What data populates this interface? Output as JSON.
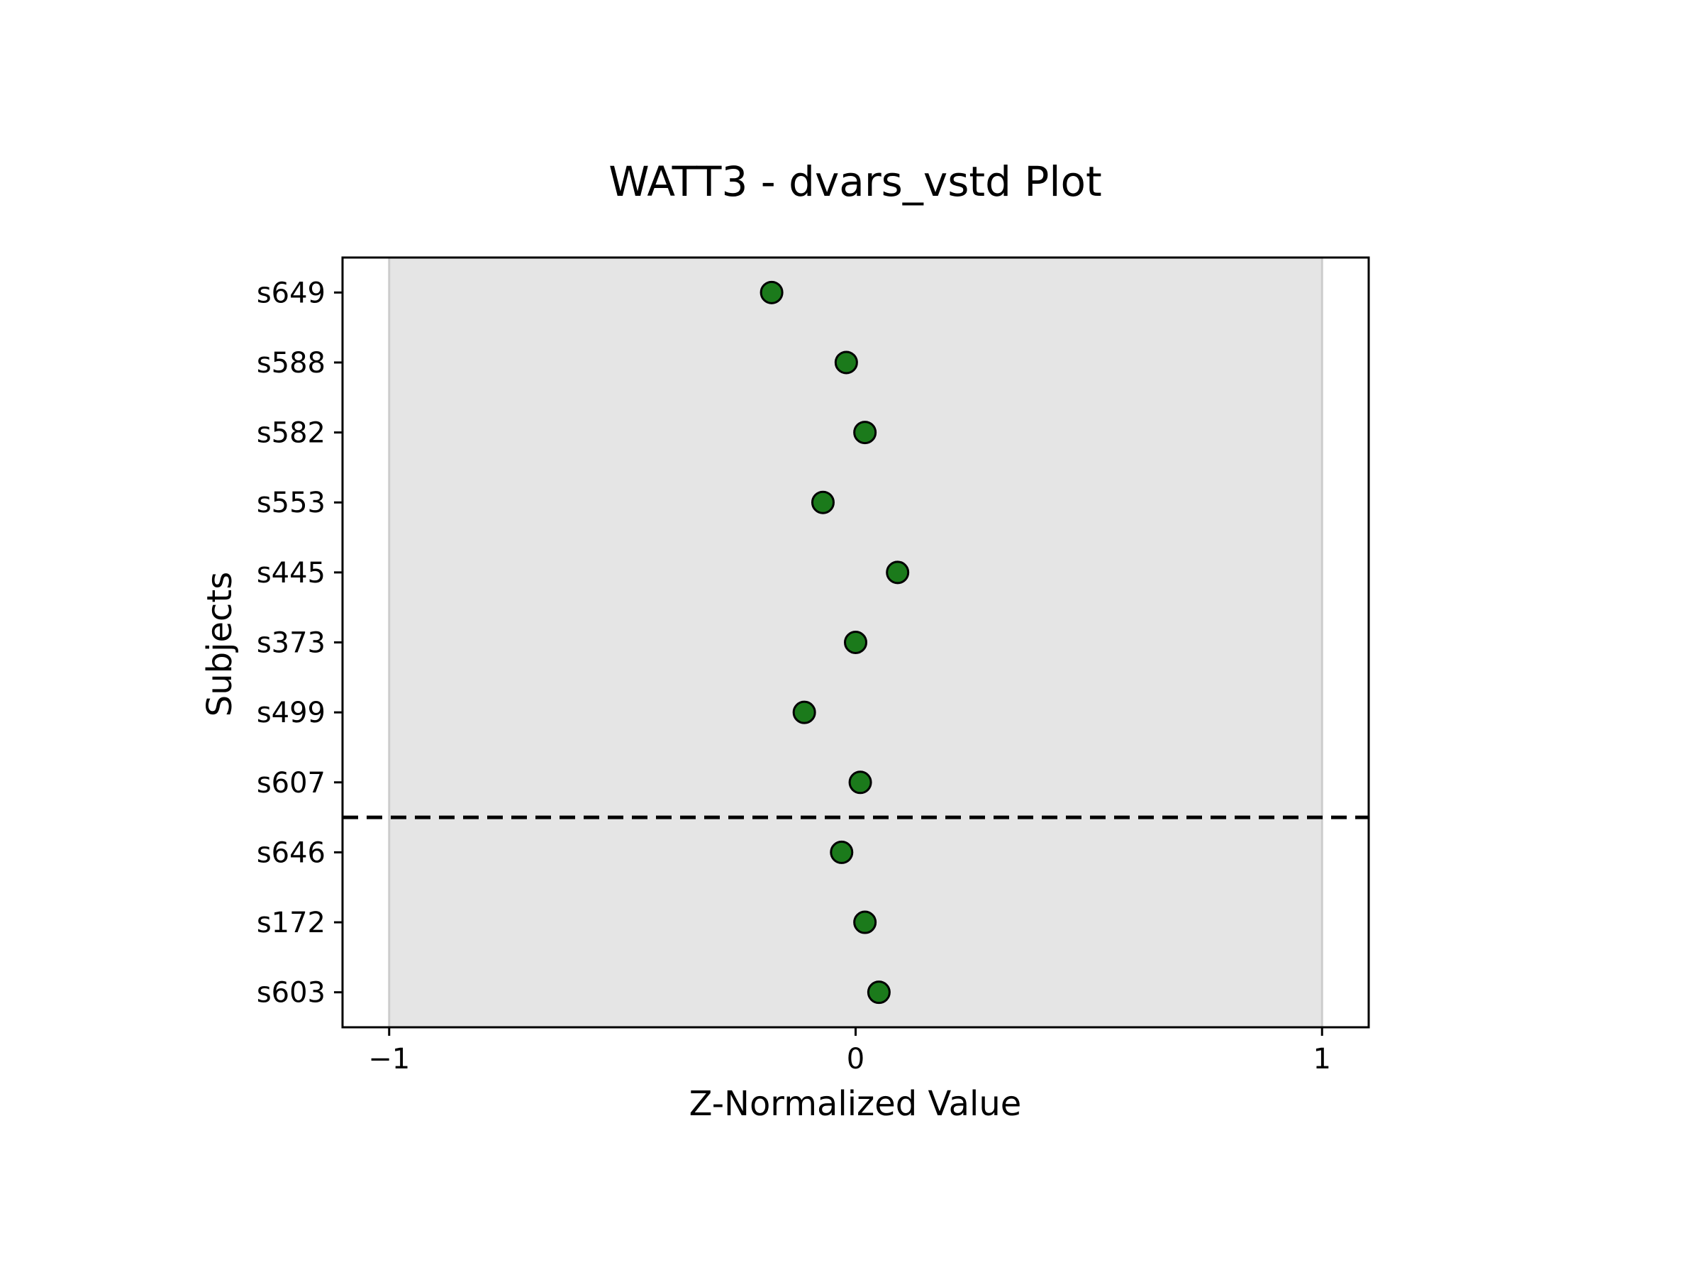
{
  "chart_data": {
    "type": "scatter",
    "title": "WATT3 - dvars_vstd Plot",
    "xlabel": "Z-Normalized Value",
    "ylabel": "Subjects",
    "xlim": [
      -1.1,
      1.1
    ],
    "xticks": [
      -1,
      0,
      1
    ],
    "xtick_labels": [
      "−1",
      "0",
      "1"
    ],
    "categories": [
      "s649",
      "s588",
      "s582",
      "s553",
      "s445",
      "s373",
      "s499",
      "s607",
      "s646",
      "s172",
      "s603"
    ],
    "values": [
      -0.18,
      -0.02,
      0.02,
      -0.07,
      0.09,
      0.0,
      -0.11,
      0.01,
      -0.03,
      0.02,
      0.05
    ],
    "shaded_band": [
      -1,
      1
    ],
    "divider_between": [
      "s607",
      "s646"
    ],
    "colors": {
      "marker_fill": "#1b7a1b",
      "marker_edge": "#000000",
      "band_fill": "#e5e5e5",
      "band_edge": "#cccccc"
    }
  }
}
